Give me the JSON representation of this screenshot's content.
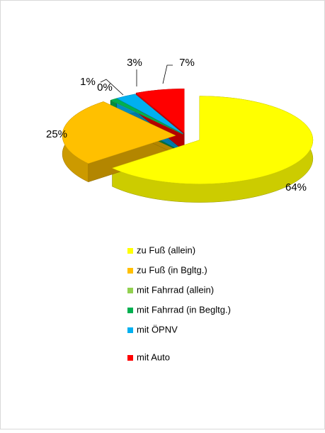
{
  "chart_data": {
    "type": "pie",
    "categories": [
      "zu Fuß (allein)",
      "zu Fuß (in Bgltg.)",
      "mit Fahrrad (allein)",
      "mit Fahrrad (in Begltg.)",
      "mit ÖPNV",
      "mit Auto"
    ],
    "values": [
      64,
      25,
      0,
      1,
      3,
      7
    ],
    "value_labels": [
      "64%",
      "25%",
      "0%",
      "1%",
      "3%",
      "7%"
    ],
    "colors": [
      "#ffff00",
      "#ffc000",
      "#92d050",
      "#00b050",
      "#00b0f0",
      "#ff0000"
    ]
  }
}
